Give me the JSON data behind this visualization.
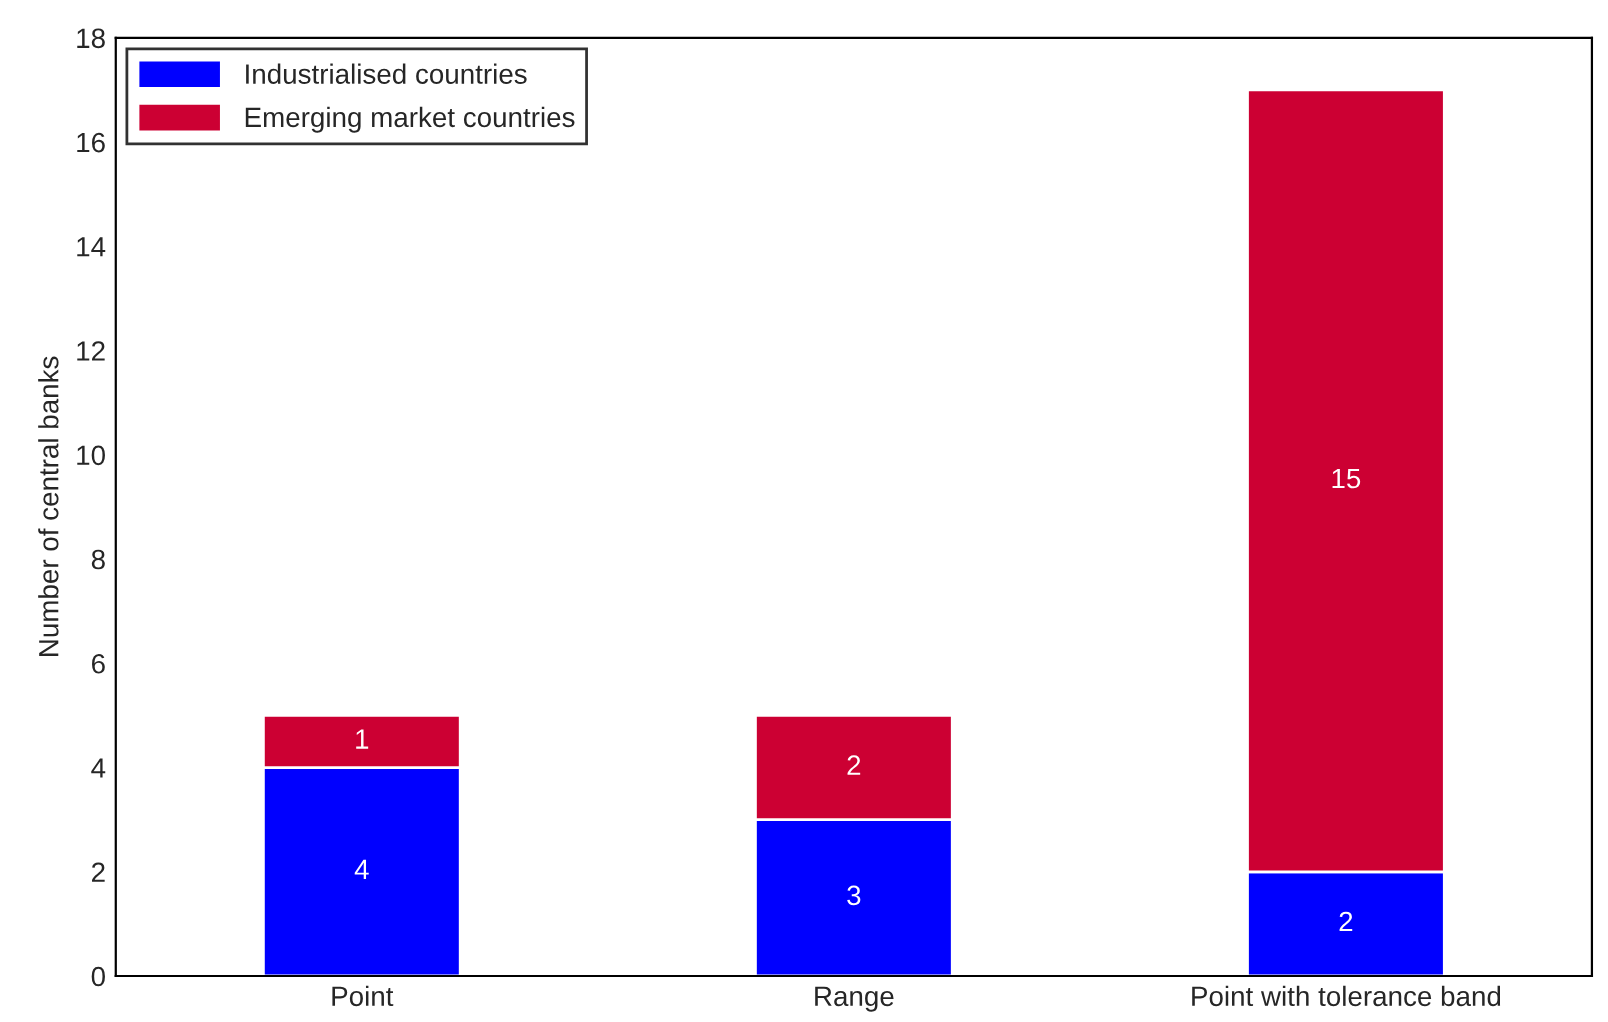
{
  "chart_data": {
    "type": "bar",
    "ylabel": "Number of central banks",
    "categories": [
      "Point",
      "Range",
      "Point with tolerance band"
    ],
    "stacked": true,
    "data_labels": true,
    "legend": "top left",
    "grid": false,
    "ylim": [
      0,
      18
    ],
    "yticks": [
      0,
      2,
      4,
      6,
      8,
      10,
      12,
      14,
      16,
      18
    ],
    "series": [
      {
        "name": "Industrialised countries",
        "color": "#0000ff",
        "values": [
          4,
          3,
          2
        ]
      },
      {
        "name": "Emerging market countries",
        "color": "#cc0033",
        "values": [
          1,
          2,
          15
        ]
      }
    ]
  }
}
